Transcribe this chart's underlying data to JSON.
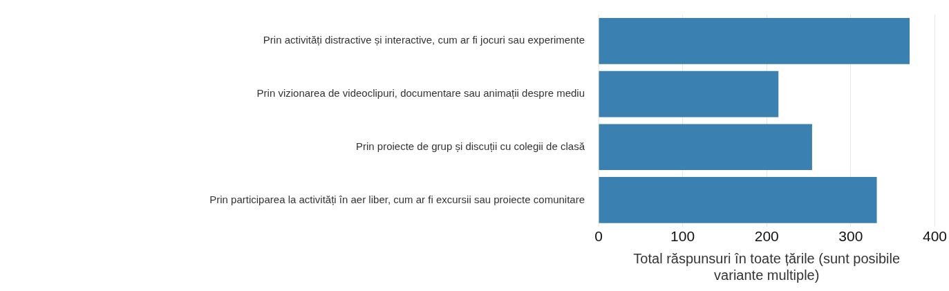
{
  "chart_data": {
    "type": "bar",
    "orientation": "horizontal",
    "categories": [
      "Prin activități distractive și interactive, cum ar fi jocuri sau experimente",
      "Prin vizionarea de videoclipuri, documentare sau animații despre mediu",
      "Prin proiecte de grup și discuții cu colegii de clasă",
      "Prin participarea la activități în aer liber, cum ar fi excursii sau proiecte comunitare"
    ],
    "values": [
      370,
      214,
      254,
      331
    ],
    "color": "#3a80b0",
    "xlim": [
      0,
      400
    ],
    "xticks": [
      0,
      100,
      200,
      300,
      400
    ],
    "xlabel": "Total răspunsuri în toate țările (sunt posibile variante multiple)",
    "grid": "x",
    "legend": false
  }
}
